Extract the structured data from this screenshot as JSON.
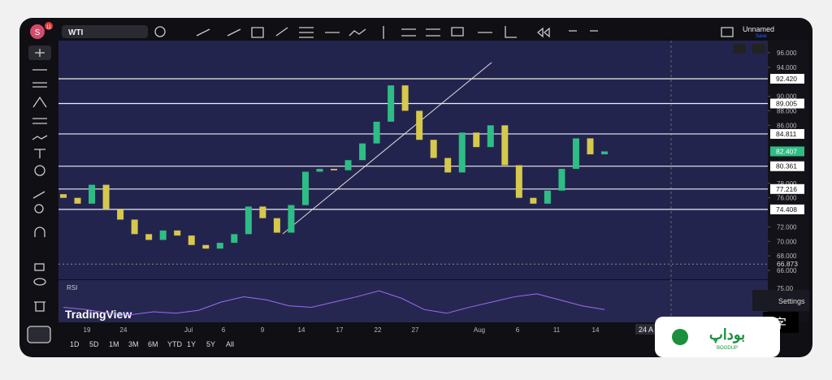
{
  "header": {
    "avatar": "S",
    "notifications": "11",
    "symbol": "WTI",
    "layout_name": "Unnamed",
    "save": "Save"
  },
  "chart_data": {
    "type": "candlestick",
    "ohlc": [
      [
        76.5,
        76.0
      ],
      [
        76.0,
        75.2
      ],
      [
        75.2,
        77.8
      ],
      [
        77.8,
        74.5
      ],
      [
        74.5,
        73.0
      ],
      [
        73.0,
        71.0
      ],
      [
        71.0,
        70.2
      ],
      [
        70.2,
        71.5
      ],
      [
        71.5,
        70.8
      ],
      [
        70.8,
        69.5
      ],
      [
        69.5,
        69.0
      ],
      [
        69.0,
        69.8
      ],
      [
        69.8,
        71.0
      ],
      [
        71.0,
        74.8
      ],
      [
        74.8,
        73.2
      ],
      [
        73.2,
        71.2
      ],
      [
        71.2,
        75.0
      ],
      [
        75.0,
        79.6
      ],
      [
        79.6,
        80.0
      ],
      [
        80.0,
        79.8
      ],
      [
        79.8,
        81.2
      ],
      [
        81.2,
        83.5
      ],
      [
        83.5,
        86.5
      ],
      [
        86.5,
        91.5
      ],
      [
        91.5,
        88.0
      ],
      [
        88.0,
        84.0
      ],
      [
        84.0,
        81.5
      ],
      [
        81.5,
        79.5
      ],
      [
        79.5,
        85.0
      ],
      [
        85.0,
        83.0
      ],
      [
        83.0,
        86.0
      ],
      [
        86.0,
        80.5
      ],
      [
        80.5,
        76.0
      ],
      [
        76.0,
        75.2
      ],
      [
        75.2,
        77.0
      ],
      [
        77.0,
        80.0
      ],
      [
        80.0,
        84.2
      ],
      [
        84.2,
        82.0
      ],
      [
        82.0,
        82.4
      ]
    ],
    "up_color": "#2ebd85",
    "down_color": "#d6c84c",
    "ylim": [
      66,
      96
    ],
    "yticks": [
      {
        "value": 96,
        "label": "96.000"
      },
      {
        "value": 94,
        "label": "94.000"
      },
      {
        "value": 90,
        "label": "90.000"
      },
      {
        "value": 88,
        "label": "88.000"
      },
      {
        "value": 86,
        "label": "86.000"
      },
      {
        "value": 78,
        "label": "78.000"
      },
      {
        "value": 76,
        "label": "76.000"
      },
      {
        "value": 72,
        "label": "72.000"
      },
      {
        "value": 70,
        "label": "70.000"
      },
      {
        "value": 68,
        "label": "68.000"
      },
      {
        "value": 66,
        "label": "66.000"
      }
    ],
    "levels": [
      {
        "value": 92.42,
        "label": "92.420"
      },
      {
        "value": 89.005,
        "label": "89.005"
      },
      {
        "value": 84.811,
        "label": "84.811"
      },
      {
        "value": 80.361,
        "label": "80.361"
      },
      {
        "value": 77.216,
        "label": "77.216"
      },
      {
        "value": 74.408,
        "label": "74.408"
      }
    ],
    "last_price": {
      "value": 82.407,
      "label": "82.407"
    },
    "alert_line": {
      "value": 66.873,
      "label": "66.873"
    },
    "x_labels": [
      "19",
      "24",
      "Jul",
      "6",
      "9",
      "14",
      "17",
      "22",
      "27",
      "Aug",
      "6",
      "11",
      "14"
    ],
    "x_cursor_label": "24 A",
    "rsi": {
      "label": "RSI",
      "top_label": "75.00",
      "ylim": [
        30,
        80
      ],
      "color": "#9c6cf0",
      "values": [
        48,
        45,
        40,
        38,
        42,
        40,
        44,
        55,
        62,
        58,
        50,
        48,
        55,
        62,
        70,
        60,
        45,
        40,
        48,
        55,
        62,
        66,
        58,
        50,
        45
      ]
    },
    "watermark": "TradingView"
  },
  "timeframes": [
    "1D",
    "5D",
    "1M",
    "3M",
    "6M",
    "YTD",
    "1Y",
    "5Y",
    "All"
  ],
  "settings": "Settings",
  "lang_icon": "字",
  "logo": {
    "brand": "BOODUP",
    "mark": "بوداپ"
  }
}
